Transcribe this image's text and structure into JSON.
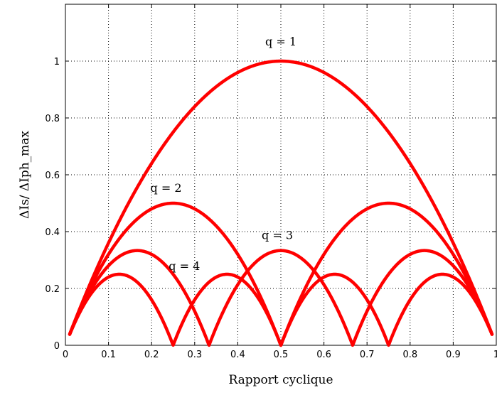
{
  "chart_data": {
    "type": "line",
    "title": "",
    "xlabel": "Rapport cyclique",
    "ylabel": "ΔIs/ ΔIph_max",
    "xlim": [
      0,
      1
    ],
    "ylim": [
      0,
      1.2
    ],
    "grid": true,
    "x_ticks": [
      0,
      0.1,
      0.2,
      0.3,
      0.4,
      0.5,
      0.6,
      0.7,
      0.8,
      0.9,
      1
    ],
    "x_tick_labels": [
      "0",
      "0.1",
      "0.2",
      "0.3",
      "0.4",
      "0.5",
      "0.6",
      "0.7",
      "0.8",
      "0.9",
      "1"
    ],
    "y_ticks": [
      0,
      0.2,
      0.4,
      0.6,
      0.8,
      1
    ],
    "y_tick_labels": [
      "0",
      "0.2",
      "0.4",
      "0.6",
      "0.8",
      "1"
    ],
    "series_color": "#ff0000",
    "x": [
      0.01,
      0.05,
      0.0833,
      0.125,
      0.1667,
      0.25,
      0.3333,
      0.375,
      0.4167,
      0.5,
      0.5833,
      0.625,
      0.6667,
      0.75,
      0.8333,
      0.875,
      0.9167,
      0.95,
      0.99
    ],
    "series": [
      {
        "q": 1,
        "label": "q = 1",
        "values": [
          0.0396,
          0.19,
          0.3056,
          0.4375,
          0.5556,
          0.75,
          0.8889,
          0.9375,
          0.9722,
          1.0,
          0.9722,
          0.9375,
          0.8889,
          0.75,
          0.5556,
          0.4375,
          0.3056,
          0.19,
          0.0396
        ]
      },
      {
        "q": 2,
        "label": "q = 2",
        "values": [
          0.0396,
          0.18,
          0.2778,
          0.375,
          0.4444,
          0.5,
          0.4444,
          0.375,
          0.2778,
          0.0,
          0.2778,
          0.375,
          0.4444,
          0.5,
          0.4444,
          0.375,
          0.2778,
          0.18,
          0.0396
        ]
      },
      {
        "q": 3,
        "label": "q = 3",
        "values": [
          0.0396,
          0.17,
          0.25,
          0.3125,
          0.3333,
          0.25,
          0.0,
          0.1875,
          0.2778,
          0.3333,
          0.2778,
          0.1875,
          0.0,
          0.25,
          0.3333,
          0.3125,
          0.25,
          0.17,
          0.0396
        ]
      },
      {
        "q": 4,
        "label": "q = 4",
        "values": [
          0.0396,
          0.16,
          0.2222,
          0.25,
          0.2222,
          0.0,
          0.2222,
          0.25,
          0.2222,
          0.0,
          0.2222,
          0.25,
          0.2222,
          0.0,
          0.2222,
          0.25,
          0.2222,
          0.16,
          0.0396
        ]
      }
    ]
  }
}
